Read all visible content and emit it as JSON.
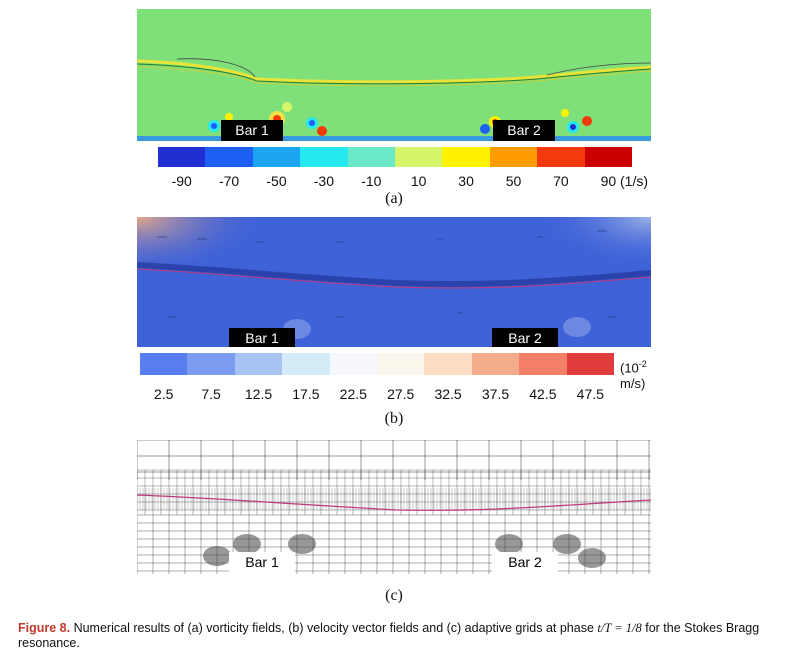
{
  "panel_a": {
    "bar1_label": "Bar 1",
    "bar2_label": "Bar 2",
    "colorbar_colors": [
      "#1f2fd1",
      "#1c5ff2",
      "#1ca6f2",
      "#26e8f0",
      "#6be8c8",
      "#d6f56a",
      "#fff200",
      "#ff9c00",
      "#f23a0c",
      "#cc0000"
    ],
    "tick_labels": [
      "-90",
      "-70",
      "-50",
      "-30",
      "-10",
      "10",
      "30",
      "50",
      "70",
      "90 (1/s)"
    ],
    "sublabel": "(a)"
  },
  "panel_b": {
    "bar1_label": "Bar 1",
    "bar2_label": "Bar 2",
    "colorbar_colors": [
      "#5a7df0",
      "#7c9cf2",
      "#a8c2f4",
      "#d4ebf8",
      "#f6f8fb",
      "#fbf6ec",
      "#fbdcc4",
      "#f4ab8a",
      "#f27f66",
      "#e03c3c"
    ],
    "tick_labels": [
      "2.5",
      "7.5",
      "12.5",
      "17.5",
      "22.5",
      "27.5",
      "32.5",
      "37.5",
      "42.5",
      "47.5"
    ],
    "unit_line1": "(10",
    "unit_sup": "-2",
    "unit_line2": "m/s)",
    "sublabel": "(b)"
  },
  "panel_c": {
    "bar1_label": "Bar 1",
    "bar2_label": "Bar 2",
    "sublabel": "(c)"
  },
  "caption": {
    "figure_label": "Figure 8.",
    "text_before": "Numerical results of (a) vorticity fields, (b) velocity vector fields and (c) adaptive grids at phase",
    "math": "t/T = 1/8",
    "text_after": "for the Stokes Bragg resonance."
  }
}
